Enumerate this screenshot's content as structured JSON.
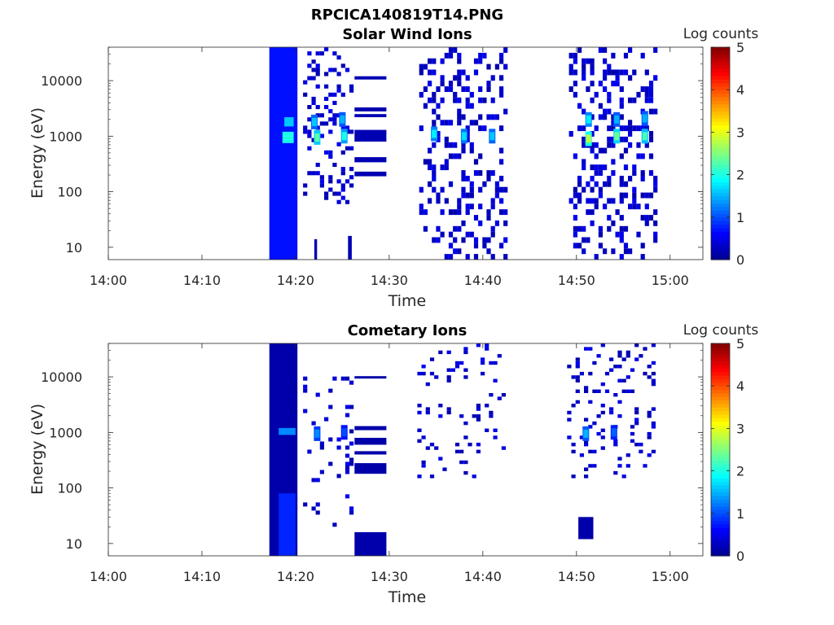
{
  "figure_title": "RPCICA140819T14.PNG",
  "colormap": [
    "#00008f",
    "#0000ff",
    "#0080ff",
    "#00ffff",
    "#80ff80",
    "#ffff00",
    "#ff8000",
    "#ff0000",
    "#800000"
  ],
  "chart_data": [
    {
      "type": "heatmap",
      "title": "Solar Wind Ions",
      "xlabel": "Time",
      "ylabel": "Energy (eV)",
      "x_ticks": [
        "14:00",
        "14:10",
        "14:20",
        "14:30",
        "14:40",
        "14:50",
        "15:00"
      ],
      "y_ticks": [
        "10",
        "100",
        "1000",
        "10000"
      ],
      "y_scale": "log",
      "ylim": [
        6,
        40000
      ],
      "colorbar": {
        "label": "Log counts",
        "ticks": [
          "0",
          "1",
          "2",
          "3",
          "4",
          "5"
        ],
        "range": [
          0,
          5
        ]
      },
      "regions": [
        {
          "t0": 17.2,
          "t1": 20.2,
          "e0": 6,
          "e1": 40000,
          "level": 0.7
        },
        {
          "t0": 18.8,
          "t1": 19.8,
          "e0": 1500,
          "e1": 2200,
          "level": 1.6
        },
        {
          "t0": 18.6,
          "t1": 19.8,
          "e0": 750,
          "e1": 1200,
          "level": 2.0
        },
        {
          "t0": 26.3,
          "t1": 29.7,
          "e0": 10500,
          "e1": 12000,
          "level": 0.2
        },
        {
          "t0": 26.3,
          "t1": 29.7,
          "e0": 2800,
          "e1": 3300,
          "level": 0.2
        },
        {
          "t0": 26.3,
          "t1": 29.7,
          "e0": 2200,
          "e1": 2500,
          "level": 0.2
        },
        {
          "t0": 26.3,
          "t1": 29.7,
          "e0": 800,
          "e1": 1300,
          "level": 0.2
        },
        {
          "t0": 26.3,
          "t1": 29.7,
          "e0": 340,
          "e1": 420,
          "level": 0.2
        },
        {
          "t0": 26.3,
          "t1": 29.7,
          "e0": 190,
          "e1": 230,
          "level": 0.2
        },
        {
          "t0": 25.6,
          "t1": 26.0,
          "e0": 6,
          "e1": 16,
          "level": 0.2
        },
        {
          "t0": 22.0,
          "t1": 22.3,
          "e0": 6,
          "e1": 14,
          "level": 0.2
        }
      ],
      "bursts": [
        {
          "t0": 20.8,
          "t1": 26.3,
          "e0": 60,
          "e1": 40000,
          "density": 0.22,
          "seed": 11
        },
        {
          "t0": 33.2,
          "t1": 42.8,
          "e0": 6,
          "e1": 40000,
          "density": 0.28,
          "seed": 23
        },
        {
          "t0": 49.2,
          "t1": 58.5,
          "e0": 6,
          "e1": 40000,
          "density": 0.28,
          "seed": 37
        }
      ],
      "hotspots": [
        {
          "t": 22.3,
          "e": 950,
          "level": 2.3
        },
        {
          "t": 22.0,
          "e": 1800,
          "level": 1.6
        },
        {
          "t": 25.2,
          "e": 1000,
          "level": 2.0
        },
        {
          "t": 25.0,
          "e": 2000,
          "level": 1.5
        },
        {
          "t": 34.8,
          "e": 1100,
          "level": 1.8
        },
        {
          "t": 38.0,
          "e": 1000,
          "level": 1.7
        },
        {
          "t": 41.0,
          "e": 1000,
          "level": 1.6
        },
        {
          "t": 51.3,
          "e": 900,
          "level": 2.8
        },
        {
          "t": 51.3,
          "e": 2000,
          "level": 1.8
        },
        {
          "t": 54.3,
          "e": 1000,
          "level": 2.4
        },
        {
          "t": 54.3,
          "e": 2000,
          "level": 1.5
        },
        {
          "t": 57.3,
          "e": 1000,
          "level": 2.2
        },
        {
          "t": 57.3,
          "e": 2100,
          "level": 1.5
        }
      ]
    },
    {
      "type": "heatmap",
      "title": "Cometary Ions",
      "xlabel": "Time",
      "ylabel": "Energy (eV)",
      "x_ticks": [
        "14:00",
        "14:10",
        "14:20",
        "14:30",
        "14:40",
        "14:50",
        "15:00"
      ],
      "y_ticks": [
        "10",
        "100",
        "1000",
        "10000"
      ],
      "y_scale": "log",
      "ylim": [
        6,
        40000
      ],
      "colorbar": {
        "label": "Log counts",
        "ticks": [
          "0",
          "1",
          "2",
          "3",
          "4",
          "5"
        ],
        "range": [
          0,
          5
        ]
      },
      "regions": [
        {
          "t0": 17.2,
          "t1": 20.2,
          "e0": 6,
          "e1": 40000,
          "level": 0.15
        },
        {
          "t0": 18.2,
          "t1": 20.0,
          "e0": 6,
          "e1": 80,
          "level": 0.8
        },
        {
          "t0": 18.2,
          "t1": 20.0,
          "e0": 900,
          "e1": 1200,
          "level": 1.3
        },
        {
          "t0": 26.3,
          "t1": 29.7,
          "e0": 9300,
          "e1": 10300,
          "level": 0.15
        },
        {
          "t0": 26.3,
          "t1": 29.7,
          "e0": 1100,
          "e1": 1300,
          "level": 0.15
        },
        {
          "t0": 26.3,
          "t1": 29.7,
          "e0": 600,
          "e1": 800,
          "level": 0.15
        },
        {
          "t0": 26.3,
          "t1": 29.7,
          "e0": 400,
          "e1": 460,
          "level": 0.15
        },
        {
          "t0": 26.3,
          "t1": 29.7,
          "e0": 180,
          "e1": 280,
          "level": 0.15
        },
        {
          "t0": 26.3,
          "t1": 29.7,
          "e0": 6,
          "e1": 16,
          "level": 0.15
        },
        {
          "t0": 50.2,
          "t1": 51.8,
          "e0": 12,
          "e1": 30,
          "level": 0.15
        }
      ],
      "bursts": [
        {
          "t0": 20.8,
          "t1": 26.3,
          "e0": 20,
          "e1": 12000,
          "density": 0.12,
          "seed": 41
        },
        {
          "t0": 33.0,
          "t1": 42.5,
          "e0": 150,
          "e1": 40000,
          "density": 0.1,
          "seed": 53
        },
        {
          "t0": 49.0,
          "t1": 58.5,
          "e0": 150,
          "e1": 40000,
          "density": 0.11,
          "seed": 67
        }
      ],
      "hotspots": [
        {
          "t": 22.3,
          "e": 950,
          "level": 1.3
        },
        {
          "t": 25.2,
          "e": 1000,
          "level": 1.0
        },
        {
          "t": 51.0,
          "e": 950,
          "level": 1.5
        },
        {
          "t": 54.0,
          "e": 1000,
          "level": 1.1
        }
      ]
    }
  ]
}
